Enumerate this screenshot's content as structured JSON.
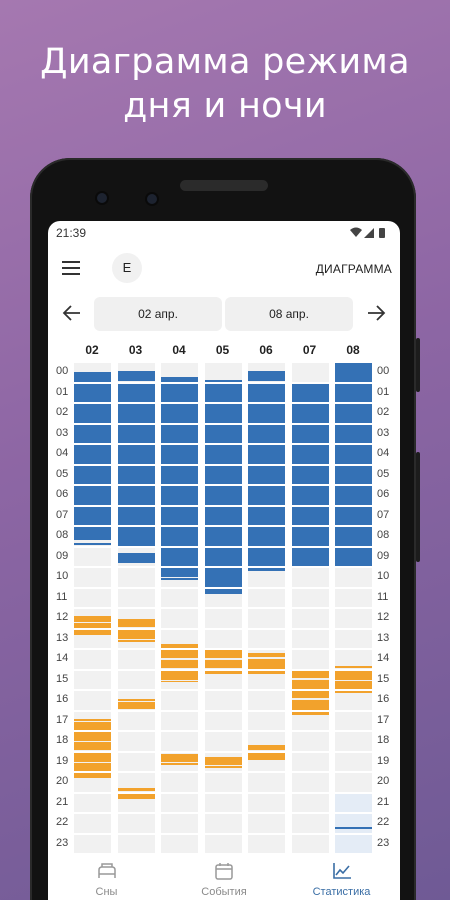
{
  "promo": {
    "line1": "Диаграмма режима",
    "line2": "дня и ночи"
  },
  "status_bar": {
    "time": "21:39"
  },
  "app_bar": {
    "avatar_letter": "E",
    "title": "ДИАГРАММА"
  },
  "nav": {
    "start_date": "02 апр.",
    "end_date": "08 апр."
  },
  "days": [
    "02",
    "03",
    "04",
    "05",
    "06",
    "07",
    "08"
  ],
  "hours": [
    "00",
    "01",
    "02",
    "03",
    "04",
    "05",
    "06",
    "07",
    "08",
    "09",
    "10",
    "11",
    "12",
    "13",
    "14",
    "15",
    "16",
    "17",
    "18",
    "19",
    "20",
    "21",
    "22",
    "23"
  ],
  "colors": {
    "sleep": "#3471b5",
    "event": "#f2a22c",
    "empty": "#f1f1f1",
    "future": "#e4ecf6",
    "accent": "#3a6ea5"
  },
  "chart_data": {
    "type": "heatmap",
    "categories": [
      "02",
      "03",
      "04",
      "05",
      "06",
      "07",
      "08"
    ],
    "series": [
      {
        "name": "Сны",
        "values": [
          [
            [
              0.5,
              8.7
            ],
            [
              8.85,
              9.0
            ]
          ],
          [
            [
              0.45,
              9.0
            ],
            [
              9.3,
              9.8
            ]
          ],
          [
            [
              0.75,
              10.5
            ],
            [
              10.55,
              10.65
            ]
          ],
          [
            [
              0.9,
              11.0
            ],
            [
              11.05,
              11.3
            ]
          ],
          [
            [
              0.45,
              10.2
            ]
          ],
          [
            [
              1.0,
              10.0
            ]
          ],
          [
            [
              0.0,
              10.0
            ],
            [
              22.7,
              22.75
            ]
          ]
        ]
      },
      {
        "name": "События",
        "values": [
          [
            [
              12.4,
              12.7
            ],
            [
              12.75,
              13.3
            ],
            [
              17.4,
              17.5
            ],
            [
              17.55,
              18.5
            ],
            [
              18.55,
              19.5
            ],
            [
              19.55,
              20.3
            ]
          ],
          [
            [
              12.55,
              13.5
            ],
            [
              13.55,
              13.65
            ],
            [
              16.45,
              16.55
            ],
            [
              16.6,
              17.0
            ],
            [
              20.8,
              21.3
            ]
          ],
          [
            [
              13.75,
              14.45
            ],
            [
              14.55,
              15.5
            ],
            [
              15.55,
              15.6
            ],
            [
              19.1,
              19.5
            ],
            [
              19.55,
              19.65
            ]
          ],
          [
            [
              14.05,
              14.45
            ],
            [
              14.55,
              15.2
            ],
            [
              19.25,
              19.65
            ],
            [
              19.7,
              19.8
            ]
          ],
          [
            [
              14.2,
              14.4
            ],
            [
              14.5,
              15.2
            ],
            [
              18.7,
              19.4
            ]
          ],
          [
            [
              15.0,
              15.4
            ],
            [
              15.5,
              16.4
            ],
            [
              16.5,
              17.2
            ]
          ],
          [
            [
              14.85,
              15.5
            ],
            [
              15.55,
              16.1
            ]
          ]
        ]
      }
    ],
    "ylim": [
      0,
      24
    ]
  },
  "bottom_nav": {
    "tabs": [
      {
        "label": "Сны",
        "icon": "bed-icon",
        "active": false
      },
      {
        "label": "События",
        "icon": "calendar-icon",
        "active": false
      },
      {
        "label": "Статистика",
        "icon": "chart-icon",
        "active": true
      }
    ]
  }
}
